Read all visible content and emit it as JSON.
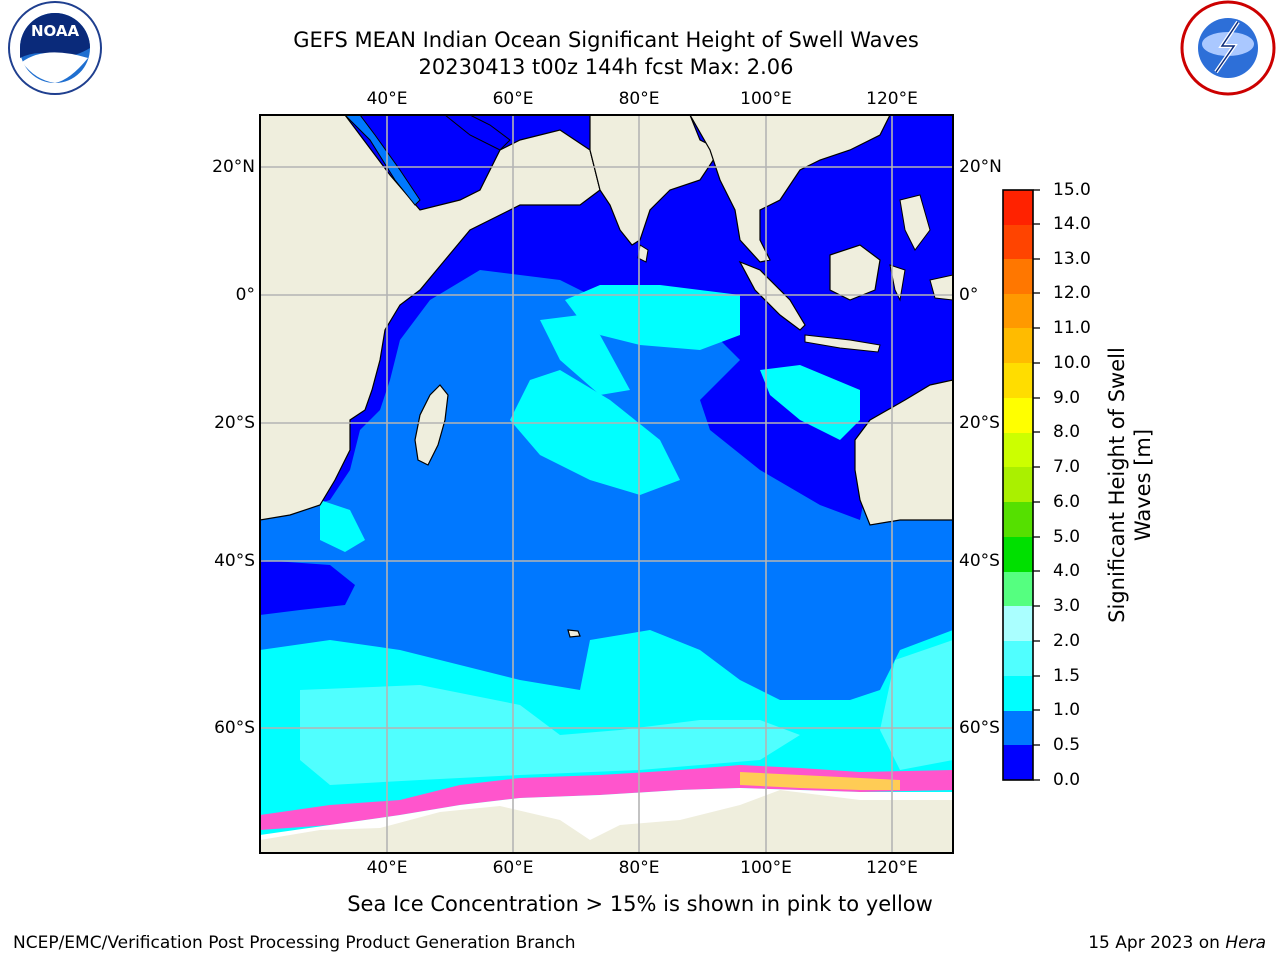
{
  "title_line1": "GEFS MEAN Indian Ocean Significant Height of Swell Waves",
  "title_line2": "20230413 t00z 144h fcst   Max: 2.06",
  "lon_ticks": [
    "40°E",
    "60°E",
    "80°E",
    "100°E",
    "120°E"
  ],
  "lat_ticks": [
    "20°N",
    "0°",
    "20°S",
    "40°S",
    "60°S"
  ],
  "colorbar": {
    "label_line1": "Significant Height of Swell",
    "label_line2": "Waves [m]",
    "ticks": [
      "0.0",
      "0.5",
      "1.0",
      "1.5",
      "2.0",
      "3.0",
      "4.0",
      "5.0",
      "6.0",
      "7.0",
      "8.0",
      "9.0",
      "10.0",
      "11.0",
      "12.0",
      "13.0",
      "14.0",
      "15.0"
    ],
    "colors": [
      "#0000ff",
      "#0078ff",
      "#00ffff",
      "#50ffff",
      "#aaffff",
      "#55ff80",
      "#00e000",
      "#55e000",
      "#aaf000",
      "#ccff00",
      "#ffff00",
      "#ffdd00",
      "#ffbb00",
      "#ff9900",
      "#ff7700",
      "#ff4400",
      "#ff2200"
    ]
  },
  "sea_ice_note": "Sea Ice Concentration > 15% is shown in pink to yellow",
  "footer_left": "NCEP/EMC/Verification Post Processing Product Generation Branch",
  "footer_date": "15 Apr 2023 on ",
  "footer_host": "Hera",
  "logos": {
    "left": "NOAA",
    "left_ring_text": "NATIONAL OCEANIC AND ATMOSPHERIC ADMINISTRATION · U.S. DEPARTMENT OF COMMERCE",
    "right_ring_text": "NATIONAL WEATHER SERVICE"
  },
  "colors": {
    "land": "#efeedd",
    "ocean_low": "#0000ff",
    "ocean_mid": "#0078ff",
    "ocean_high": "#00ffff",
    "grid": "#b4b4b4",
    "ice": "#ff55cc"
  }
}
